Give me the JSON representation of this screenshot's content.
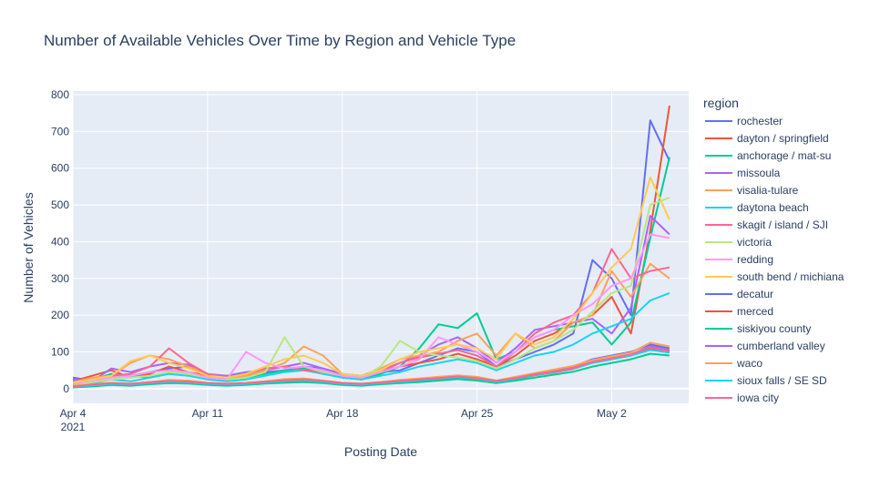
{
  "chart_data": {
    "type": "line",
    "title": "Number of Available Vehicles Over Time by Region and Vehicle Type",
    "xlabel": "Posting Date",
    "ylabel": "Number of Vehicles",
    "legend_title": "region",
    "legend_position": "right",
    "grid": true,
    "x_range": [
      "2021-04-04",
      "2021-05-06"
    ],
    "ylim": [
      -40,
      810
    ],
    "y_ticks": [
      0,
      100,
      200,
      300,
      400,
      500,
      600,
      700,
      800
    ],
    "x_ticks": [
      {
        "date": "2021-04-04",
        "label": "Apr 4",
        "sublabel": "2021"
      },
      {
        "date": "2021-04-11",
        "label": "Apr 11"
      },
      {
        "date": "2021-04-18",
        "label": "Apr 18"
      },
      {
        "date": "2021-04-25",
        "label": "Apr 25"
      },
      {
        "date": "2021-05-02",
        "label": "May 2"
      }
    ],
    "dates": [
      "2021-04-04",
      "2021-04-05",
      "2021-04-06",
      "2021-04-07",
      "2021-04-08",
      "2021-04-09",
      "2021-04-10",
      "2021-04-11",
      "2021-04-12",
      "2021-04-13",
      "2021-04-14",
      "2021-04-15",
      "2021-04-16",
      "2021-04-17",
      "2021-04-18",
      "2021-04-19",
      "2021-04-20",
      "2021-04-21",
      "2021-04-22",
      "2021-04-23",
      "2021-04-24",
      "2021-04-25",
      "2021-04-26",
      "2021-04-27",
      "2021-04-28",
      "2021-04-29",
      "2021-04-30",
      "2021-05-01",
      "2021-05-02",
      "2021-05-03",
      "2021-05-04",
      "2021-05-05"
    ],
    "series": [
      {
        "name": "rochester",
        "color": "#636efa",
        "values": [
          30,
          22,
          40,
          35,
          45,
          55,
          60,
          40,
          30,
          35,
          45,
          50,
          60,
          55,
          40,
          30,
          45,
          50,
          70,
          90,
          110,
          100,
          60,
          80,
          100,
          120,
          150,
          350,
          300,
          200,
          730,
          620
        ]
      },
      {
        "name": "dayton / springfield",
        "color": "#EF553B",
        "values": [
          20,
          35,
          50,
          30,
          40,
          60,
          45,
          35,
          30,
          40,
          55,
          60,
          50,
          45,
          35,
          30,
          45,
          60,
          70,
          80,
          95,
          80,
          60,
          90,
          130,
          150,
          180,
          200,
          250,
          150,
          430,
          770
        ]
      },
      {
        "name": "anchorage / mat-su",
        "color": "#00cc96",
        "values": [
          15,
          25,
          40,
          35,
          30,
          45,
          40,
          30,
          25,
          30,
          40,
          50,
          55,
          45,
          30,
          25,
          40,
          60,
          110,
          175,
          165,
          205,
          80,
          100,
          140,
          160,
          170,
          180,
          120,
          180,
          410,
          630
        ]
      },
      {
        "name": "missoula",
        "color": "#ab63fa",
        "values": [
          25,
          20,
          55,
          45,
          60,
          70,
          65,
          40,
          35,
          45,
          50,
          60,
          70,
          55,
          40,
          35,
          50,
          70,
          90,
          120,
          140,
          110,
          70,
          110,
          160,
          170,
          180,
          190,
          150,
          220,
          470,
          420
        ]
      },
      {
        "name": "visalia-tulare",
        "color": "#FFA15A",
        "values": [
          18,
          30,
          35,
          70,
          90,
          80,
          60,
          40,
          30,
          35,
          50,
          70,
          115,
          90,
          40,
          35,
          55,
          80,
          90,
          100,
          130,
          150,
          90,
          150,
          110,
          130,
          180,
          200,
          320,
          250,
          340,
          300
        ]
      },
      {
        "name": "daytona beach",
        "color": "#19d3f3",
        "values": [
          10,
          15,
          25,
          20,
          30,
          40,
          35,
          25,
          20,
          25,
          35,
          45,
          50,
          40,
          30,
          25,
          35,
          45,
          60,
          70,
          80,
          70,
          50,
          70,
          90,
          100,
          120,
          150,
          170,
          190,
          240,
          260
        ]
      },
      {
        "name": "skagit / island / SJI",
        "color": "#FF6692",
        "values": [
          12,
          20,
          35,
          40,
          60,
          110,
          70,
          40,
          30,
          40,
          55,
          60,
          50,
          45,
          35,
          30,
          45,
          70,
          85,
          95,
          105,
          90,
          60,
          100,
          150,
          180,
          200,
          260,
          380,
          300,
          320,
          330
        ]
      },
      {
        "name": "victoria",
        "color": "#B6E880",
        "values": [
          8,
          18,
          25,
          30,
          35,
          45,
          40,
          30,
          25,
          30,
          45,
          140,
          60,
          45,
          35,
          30,
          60,
          130,
          100,
          90,
          85,
          75,
          55,
          80,
          110,
          130,
          160,
          210,
          260,
          280,
          500,
          520
        ]
      },
      {
        "name": "redding",
        "color": "#FF97FF",
        "values": [
          14,
          22,
          30,
          35,
          45,
          50,
          45,
          30,
          25,
          100,
          70,
          55,
          60,
          50,
          35,
          30,
          45,
          60,
          80,
          140,
          120,
          100,
          70,
          100,
          140,
          160,
          200,
          230,
          280,
          300,
          420,
          410
        ]
      },
      {
        "name": "south bend / michiana",
        "color": "#FECB52",
        "values": [
          16,
          25,
          35,
          75,
          90,
          70,
          55,
          35,
          30,
          40,
          60,
          80,
          90,
          70,
          40,
          35,
          50,
          80,
          100,
          110,
          120,
          110,
          80,
          150,
          120,
          140,
          190,
          260,
          330,
          380,
          575,
          460
        ]
      },
      {
        "name": "decatur",
        "color": "#636efa",
        "values": [
          5,
          10,
          15,
          12,
          18,
          22,
          20,
          15,
          12,
          14,
          18,
          22,
          25,
          20,
          15,
          12,
          16,
          20,
          25,
          30,
          35,
          30,
          20,
          30,
          40,
          50,
          60,
          80,
          90,
          100,
          120,
          110
        ]
      },
      {
        "name": "merced",
        "color": "#EF553B",
        "values": [
          4,
          8,
          12,
          10,
          14,
          18,
          16,
          12,
          10,
          12,
          16,
          20,
          22,
          18,
          12,
          10,
          14,
          18,
          22,
          26,
          30,
          26,
          18,
          26,
          36,
          44,
          54,
          70,
          80,
          90,
          110,
          100
        ]
      },
      {
        "name": "siskiyou county",
        "color": "#00cc96",
        "values": [
          3,
          6,
          10,
          8,
          12,
          15,
          14,
          10,
          8,
          10,
          14,
          16,
          18,
          15,
          10,
          8,
          12,
          15,
          18,
          22,
          26,
          22,
          15,
          22,
          30,
          38,
          46,
          60,
          70,
          80,
          95,
          90
        ]
      },
      {
        "name": "cumberland valley",
        "color": "#ab63fa",
        "values": [
          6,
          10,
          14,
          12,
          16,
          20,
          18,
          14,
          12,
          14,
          18,
          22,
          24,
          20,
          14,
          12,
          16,
          20,
          24,
          28,
          32,
          28,
          20,
          28,
          38,
          46,
          56,
          72,
          82,
          92,
          115,
          105
        ]
      },
      {
        "name": "waco",
        "color": "#FFA15A",
        "values": [
          7,
          12,
          16,
          14,
          18,
          24,
          22,
          16,
          14,
          16,
          20,
          26,
          28,
          22,
          16,
          14,
          18,
          24,
          28,
          32,
          36,
          32,
          22,
          32,
          42,
          52,
          62,
          78,
          88,
          98,
          125,
          115
        ]
      },
      {
        "name": "sioux falls / SE SD",
        "color": "#19d3f3",
        "values": [
          5,
          9,
          13,
          11,
          15,
          19,
          17,
          13,
          11,
          13,
          17,
          21,
          23,
          19,
          13,
          11,
          15,
          19,
          23,
          27,
          31,
          27,
          19,
          27,
          37,
          45,
          55,
          70,
          80,
          90,
          105,
          98
        ]
      },
      {
        "name": "iowa city",
        "color": "#FF6692",
        "values": [
          6,
          11,
          15,
          13,
          17,
          21,
          19,
          15,
          13,
          15,
          19,
          23,
          25,
          21,
          15,
          13,
          17,
          21,
          25,
          29,
          33,
          29,
          21,
          29,
          39,
          47,
          57,
          73,
          83,
          93,
          112,
          102
        ]
      }
    ]
  }
}
